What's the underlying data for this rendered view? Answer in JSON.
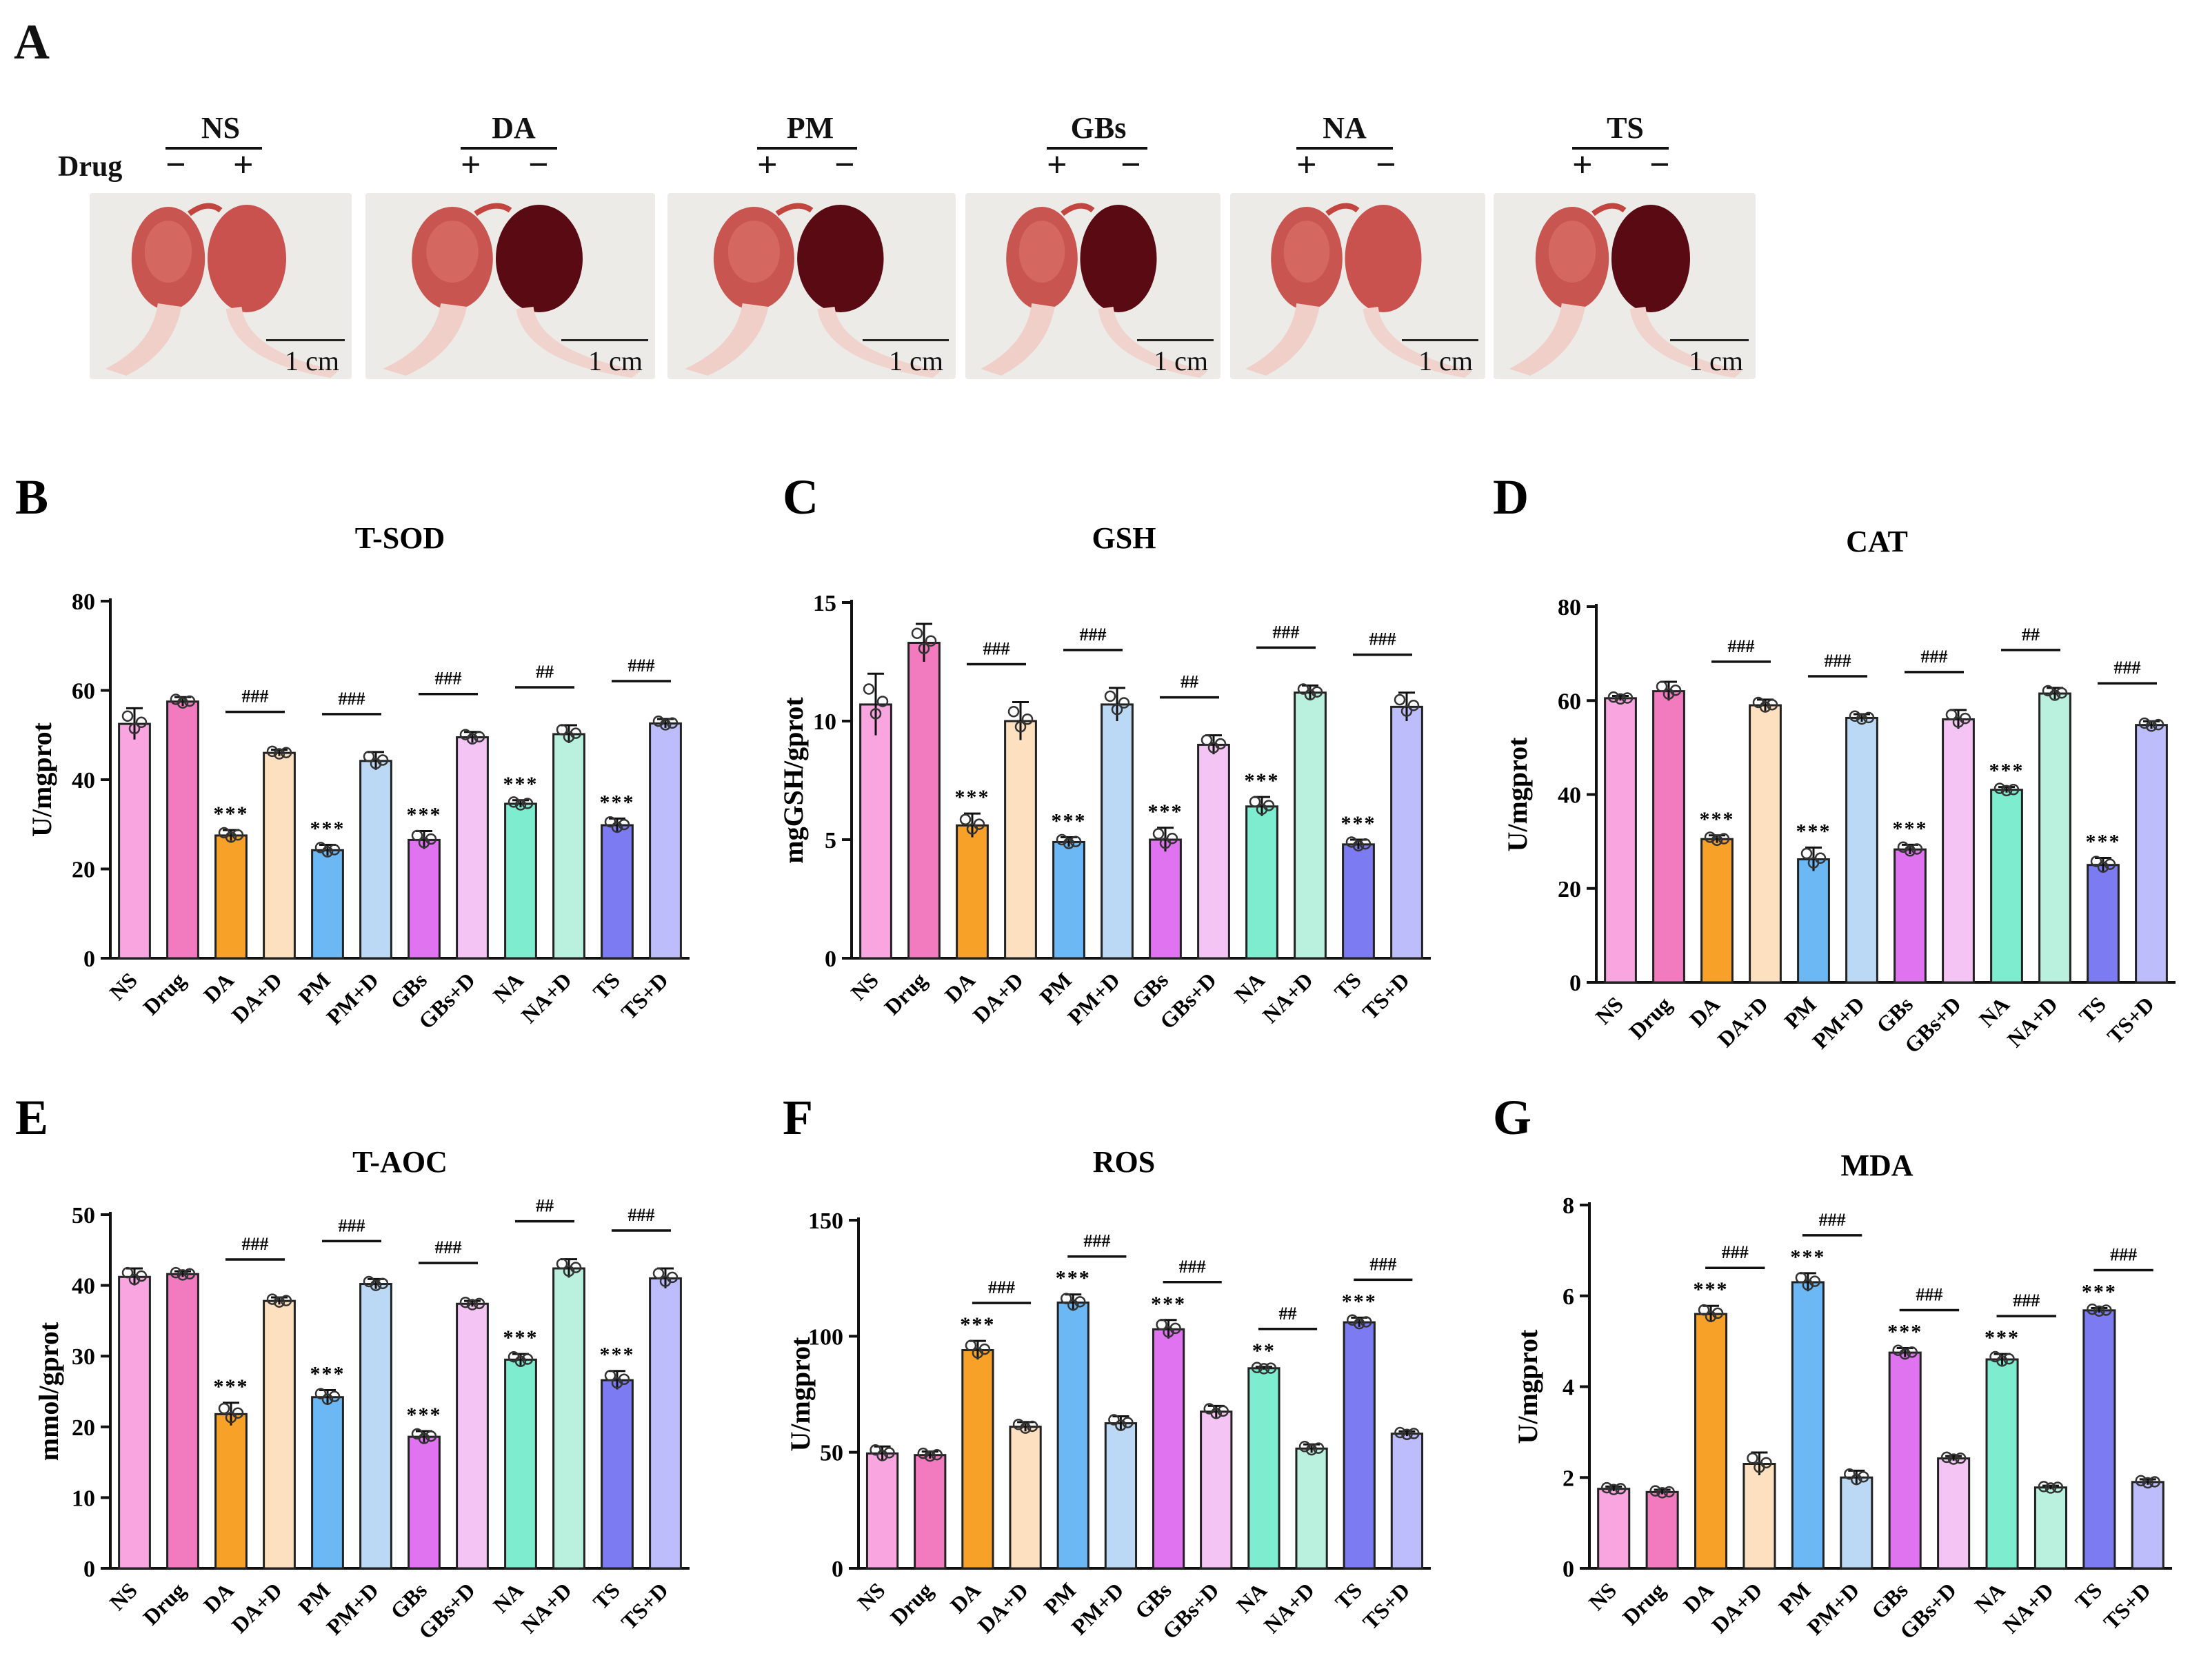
{
  "panel_a": {
    "letter": "A",
    "drug_label": "Drug",
    "scale_label": "1 cm",
    "groups": [
      {
        "name": "NS",
        "signs": [
          "−",
          "+"
        ]
      },
      {
        "name": "DA",
        "signs": [
          "+",
          "−"
        ]
      },
      {
        "name": "PM",
        "signs": [
          "+",
          "−"
        ]
      },
      {
        "name": "GBs",
        "signs": [
          "+",
          "−"
        ]
      },
      {
        "name": "NA",
        "signs": [
          "+",
          "−"
        ]
      },
      {
        "name": "TS",
        "signs": [
          "+",
          "−"
        ]
      }
    ]
  },
  "colors": {
    "bars": [
      "#F9A6E0",
      "#F27BBF",
      "#F7A129",
      "#FDE0BF",
      "#6CB8F5",
      "#BBD9F5",
      "#E073F0",
      "#F4C4F5",
      "#7DECCF",
      "#B9F0DE",
      "#7C7BF2",
      "#BCBDFA"
    ]
  },
  "chart_data": [
    {
      "letter": "B",
      "title": "T-SOD",
      "type": "bar",
      "ylabel": "U/mgprot",
      "ylim": [
        0,
        80
      ],
      "yticks": [
        0,
        20,
        40,
        60,
        80
      ],
      "categories": [
        "NS",
        "Drug",
        "DA",
        "DA+D",
        "PM",
        "PM+D",
        "GBs",
        "GBs+D",
        "NA",
        "NA+D",
        "TS",
        "TS+D"
      ],
      "values": [
        52.5,
        57.5,
        27.5,
        46,
        24.2,
        44.2,
        26.5,
        49.5,
        34.6,
        50.2,
        29.8,
        52.6
      ],
      "errors": [
        3.5,
        1,
        1.2,
        0.7,
        1.2,
        2,
        2,
        1.2,
        0.8,
        2,
        1.5,
        1
      ],
      "stars": [
        "",
        "",
        "***",
        "",
        "***",
        "",
        "***",
        "",
        "***",
        "",
        "***",
        ""
      ],
      "comparisons": [
        {
          "pair": [
            2,
            3
          ],
          "label": "###"
        },
        {
          "pair": [
            4,
            5
          ],
          "label": "###"
        },
        {
          "pair": [
            6,
            7
          ],
          "label": "###"
        },
        {
          "pair": [
            8,
            9
          ],
          "label": "##"
        },
        {
          "pair": [
            10,
            11
          ],
          "label": "###"
        }
      ]
    },
    {
      "letter": "C",
      "title": "GSH",
      "type": "bar",
      "ylabel": "mgGSH/gprot",
      "ylim": [
        0,
        15
      ],
      "yticks": [
        0,
        5,
        10,
        15
      ],
      "categories": [
        "NS",
        "Drug",
        "DA",
        "DA+D",
        "PM",
        "PM+D",
        "GBs",
        "GBs+D",
        "NA",
        "NA+D",
        "TS",
        "TS+D"
      ],
      "values": [
        10.7,
        13.3,
        5.6,
        10,
        4.9,
        10.7,
        5,
        9,
        6.4,
        11.2,
        4.8,
        10.6
      ],
      "errors": [
        1.3,
        0.8,
        0.5,
        0.8,
        0.2,
        0.7,
        0.5,
        0.4,
        0.4,
        0.3,
        0.2,
        0.6
      ],
      "stars": [
        "",
        "",
        "***",
        "",
        "***",
        "",
        "***",
        "",
        "***",
        "",
        "***",
        ""
      ],
      "comparisons": [
        {
          "pair": [
            2,
            3
          ],
          "label": "###"
        },
        {
          "pair": [
            4,
            5
          ],
          "label": "###"
        },
        {
          "pair": [
            6,
            7
          ],
          "label": "##"
        },
        {
          "pair": [
            8,
            9
          ],
          "label": "###"
        },
        {
          "pair": [
            10,
            11
          ],
          "label": "###"
        }
      ]
    },
    {
      "letter": "D",
      "title": "CAT",
      "type": "bar",
      "ylabel": "U/mgprot",
      "ylim": [
        0,
        80
      ],
      "yticks": [
        0,
        20,
        40,
        60,
        80
      ],
      "categories": [
        "NS",
        "Drug",
        "DA",
        "DA+D",
        "PM",
        "PM+D",
        "GBs",
        "GBs+D",
        "NA",
        "NA+D",
        "TS",
        "TS+D"
      ],
      "values": [
        60.5,
        62,
        30.5,
        59,
        26.2,
        56.3,
        28.3,
        56,
        41,
        61.5,
        25,
        54.8
      ],
      "errors": [
        0.5,
        2,
        0.8,
        1.2,
        2.5,
        0.8,
        1,
        2,
        0.6,
        1.2,
        1.5,
        0.8
      ],
      "stars": [
        "",
        "",
        "***",
        "",
        "***",
        "",
        "***",
        "",
        "***",
        "",
        "***",
        ""
      ],
      "comparisons": [
        {
          "pair": [
            2,
            3
          ],
          "label": "###"
        },
        {
          "pair": [
            4,
            5
          ],
          "label": "###"
        },
        {
          "pair": [
            6,
            7
          ],
          "label": "###"
        },
        {
          "pair": [
            8,
            9
          ],
          "label": "##"
        },
        {
          "pair": [
            10,
            11
          ],
          "label": "###"
        }
      ]
    },
    {
      "letter": "E",
      "title": "T-AOC",
      "type": "bar",
      "ylabel": "mmol/gprot",
      "ylim": [
        0,
        50
      ],
      "yticks": [
        0,
        10,
        20,
        30,
        40,
        50
      ],
      "categories": [
        "NS",
        "Drug",
        "DA",
        "DA+D",
        "PM",
        "PM+D",
        "GBs",
        "GBs+D",
        "NA",
        "NA+D",
        "TS",
        "TS+D"
      ],
      "values": [
        41.2,
        41.6,
        21.8,
        37.8,
        24.2,
        40.2,
        18.6,
        37.4,
        29.5,
        42.4,
        26.6,
        41
      ],
      "errors": [
        1.2,
        0.4,
        1.6,
        0.5,
        1,
        0.7,
        0.8,
        0.4,
        0.8,
        1.3,
        1.3,
        1.4
      ],
      "stars": [
        "",
        "",
        "***",
        "",
        "***",
        "",
        "***",
        "",
        "***",
        "",
        "***",
        ""
      ],
      "comparisons": [
        {
          "pair": [
            2,
            3
          ],
          "label": "###"
        },
        {
          "pair": [
            4,
            5
          ],
          "label": "###"
        },
        {
          "pair": [
            6,
            7
          ],
          "label": "###"
        },
        {
          "pair": [
            8,
            9
          ],
          "label": "##"
        },
        {
          "pair": [
            10,
            11
          ],
          "label": "###"
        }
      ]
    },
    {
      "letter": "F",
      "title": "ROS",
      "type": "bar",
      "ylabel": "U/mgprot",
      "ylim": [
        0,
        150
      ],
      "yticks": [
        0,
        50,
        100,
        150
      ],
      "categories": [
        "NS",
        "Drug",
        "DA",
        "DA+D",
        "PM",
        "PM+D",
        "GBs",
        "GBs+D",
        "NA",
        "NA+D",
        "TS",
        "TS+D"
      ],
      "values": [
        49.5,
        48.8,
        94,
        61,
        114.5,
        62.5,
        103,
        67.5,
        86.2,
        51.6,
        106,
        58
      ],
      "errors": [
        3,
        1.5,
        4,
        2,
        3.5,
        3,
        4,
        2.5,
        0.6,
        1.8,
        2,
        1
      ],
      "stars": [
        "",
        "",
        "***",
        "",
        "***",
        "",
        "***",
        "",
        "**",
        "",
        "***",
        ""
      ],
      "comparisons": [
        {
          "pair": [
            2,
            3
          ],
          "label": "###"
        },
        {
          "pair": [
            4,
            5
          ],
          "label": "###"
        },
        {
          "pair": [
            6,
            7
          ],
          "label": "###"
        },
        {
          "pair": [
            8,
            9
          ],
          "label": "##"
        },
        {
          "pair": [
            10,
            11
          ],
          "label": "###"
        }
      ]
    },
    {
      "letter": "G",
      "title": "MDA",
      "type": "bar",
      "ylabel": "U/mgprot",
      "ylim": [
        0,
        8
      ],
      "yticks": [
        0,
        2,
        4,
        6,
        8
      ],
      "categories": [
        "NS",
        "Drug",
        "DA",
        "DA+D",
        "PM",
        "PM+D",
        "GBs",
        "GBs+D",
        "NA",
        "NA+D",
        "TS",
        "TS+D"
      ],
      "values": [
        1.75,
        1.68,
        5.6,
        2.3,
        6.3,
        2,
        4.75,
        2.42,
        4.6,
        1.78,
        5.68,
        1.9
      ],
      "errors": [
        0.05,
        0.05,
        0.18,
        0.25,
        0.2,
        0.15,
        0.1,
        0.05,
        0.12,
        0.04,
        0.05,
        0.06
      ],
      "stars": [
        "",
        "",
        "***",
        "",
        "***",
        "",
        "***",
        "",
        "***",
        "",
        "***",
        ""
      ],
      "comparisons": [
        {
          "pair": [
            2,
            3
          ],
          "label": "###"
        },
        {
          "pair": [
            4,
            5
          ],
          "label": "###"
        },
        {
          "pair": [
            6,
            7
          ],
          "label": "###"
        },
        {
          "pair": [
            8,
            9
          ],
          "label": "###"
        },
        {
          "pair": [
            10,
            11
          ],
          "label": "###"
        }
      ]
    }
  ]
}
